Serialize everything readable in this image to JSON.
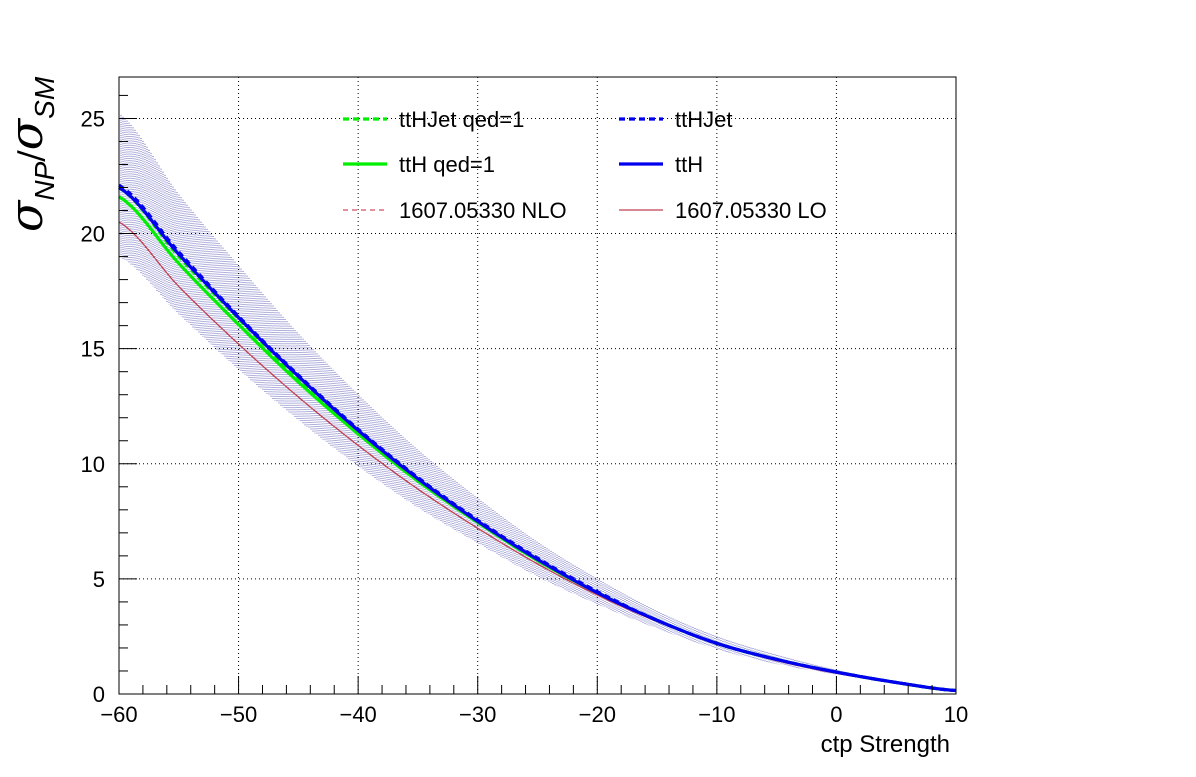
{
  "chart_data": {
    "type": "line",
    "title": "",
    "xlabel": "ctp Strength",
    "ylabel": {
      "symbol": "σ",
      "numerator_sub": "NP",
      "slash": "/",
      "denominator_sub": "SM"
    },
    "xlim": [
      -60,
      10
    ],
    "ylim": [
      0,
      26.8
    ],
    "xticks": [
      -60,
      -50,
      -40,
      -30,
      -20,
      -10,
      0,
      10
    ],
    "xtick_labels": [
      "−60",
      "−50",
      "−40",
      "−30",
      "−20",
      "−10",
      "0",
      "10"
    ],
    "yticks": [
      0,
      5,
      10,
      15,
      20,
      25
    ],
    "ytick_labels": [
      "0",
      "5",
      "10",
      "15",
      "20",
      "25"
    ],
    "grid": true,
    "legend_position": "top",
    "x": [
      -60,
      -55,
      -50,
      -45,
      -40,
      -35,
      -30,
      -25,
      -20,
      -15,
      -10,
      -5,
      0,
      5,
      10
    ],
    "series": [
      {
        "name": "ttHJet qed=1",
        "color": "#00ee00",
        "style": "dashed-thick",
        "values": [
          22.0,
          19.0,
          16.3,
          13.7,
          11.45,
          9.35,
          7.5,
          5.85,
          4.4,
          3.2,
          2.2,
          1.5,
          0.95,
          0.5,
          0.15
        ]
      },
      {
        "name": "ttHJet",
        "color": "#0000ee",
        "style": "dashed-thick",
        "values": [
          22.1,
          19.2,
          16.4,
          13.85,
          11.5,
          9.4,
          7.55,
          5.9,
          4.45,
          3.2,
          2.2,
          1.5,
          0.95,
          0.5,
          0.15
        ]
      },
      {
        "name": "ttH qed=1",
        "color": "#00ee00",
        "style": "solid-thick",
        "values": [
          21.6,
          18.7,
          16.05,
          13.55,
          11.3,
          9.25,
          7.45,
          5.8,
          4.4,
          3.2,
          2.2,
          1.5,
          0.95,
          0.5,
          0.15
        ]
      },
      {
        "name": "ttH",
        "color": "#0000ee",
        "style": "solid-thick",
        "values": [
          22.0,
          19.1,
          16.35,
          13.8,
          11.45,
          9.35,
          7.5,
          5.85,
          4.4,
          3.2,
          2.2,
          1.5,
          0.95,
          0.5,
          0.15
        ]
      },
      {
        "name": "1607.05330 NLO",
        "color": "#d05060",
        "style": "dashed-thin",
        "values": [
          20.5,
          17.7,
          15.2,
          12.9,
          10.8,
          8.9,
          7.2,
          5.65,
          4.3,
          3.15,
          2.2,
          1.45,
          0.9,
          0.5,
          0.15
        ]
      },
      {
        "name": "1607.05330 LO",
        "color": "#c04050",
        "style": "solid-thin",
        "values": [
          20.5,
          17.7,
          15.2,
          12.9,
          10.8,
          8.9,
          7.2,
          5.65,
          4.3,
          3.15,
          2.2,
          1.45,
          0.9,
          0.5,
          0.15
        ]
      }
    ],
    "uncertainty_band": {
      "color": "#1a1a9a",
      "upper": [
        25.2,
        21.7,
        18.6,
        15.65,
        13.0,
        10.6,
        8.5,
        6.6,
        5.0,
        3.6,
        2.5,
        1.7,
        1.05,
        0.55,
        0.2
      ],
      "lower": [
        19.0,
        16.5,
        14.1,
        11.9,
        9.9,
        8.1,
        6.55,
        5.1,
        3.9,
        2.85,
        1.95,
        1.3,
        0.85,
        0.45,
        0.1
      ]
    }
  }
}
